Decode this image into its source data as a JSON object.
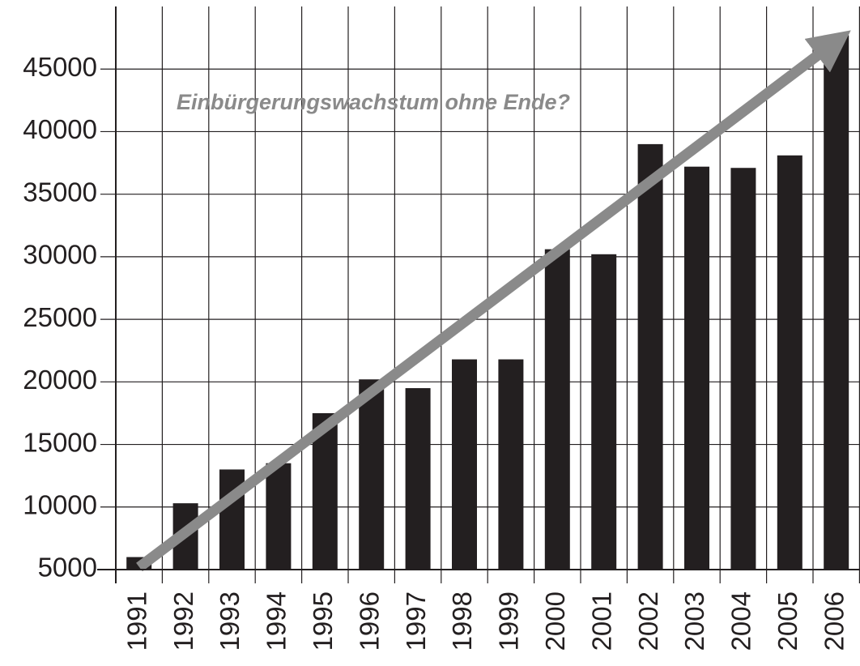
{
  "chart_data": {
    "type": "bar",
    "annotation": "Einbürgerungswachstum ohne Ende?",
    "categories": [
      "1991",
      "1992",
      "1993",
      "1994",
      "1995",
      "1996",
      "1997",
      "1998",
      "1999",
      "2000",
      "2001",
      "2002",
      "2003",
      "2004",
      "2005",
      "2006"
    ],
    "values": [
      6000,
      10300,
      13000,
      13500,
      17500,
      20200,
      19500,
      21800,
      21800,
      30600,
      30200,
      39000,
      37200,
      37100,
      38100,
      47700
    ],
    "color": "#231f20",
    "ylim": [
      5000,
      50000
    ],
    "yticks": [
      5000,
      10000,
      15000,
      20000,
      25000,
      30000,
      35000,
      40000,
      45000
    ],
    "grid": true
  }
}
